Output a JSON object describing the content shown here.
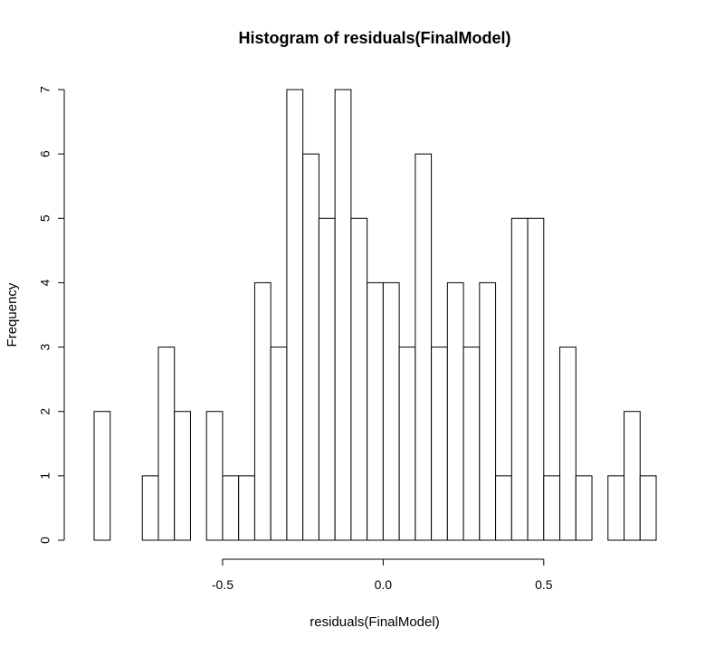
{
  "chart_data": {
    "type": "bar",
    "title": "Histogram of residuals(FinalModel)",
    "xlabel": "residuals(FinalModel)",
    "ylabel": "Frequency",
    "bin_width": 0.05,
    "bin_start": -0.9,
    "bins": [
      {
        "x0": -0.9,
        "x1": -0.85,
        "count": 2
      },
      {
        "x0": -0.85,
        "x1": -0.8,
        "count": 0
      },
      {
        "x0": -0.8,
        "x1": -0.75,
        "count": 0
      },
      {
        "x0": -0.75,
        "x1": -0.7,
        "count": 1
      },
      {
        "x0": -0.7,
        "x1": -0.65,
        "count": 3
      },
      {
        "x0": -0.65,
        "x1": -0.6,
        "count": 2
      },
      {
        "x0": -0.6,
        "x1": -0.55,
        "count": 0
      },
      {
        "x0": -0.55,
        "x1": -0.5,
        "count": 2
      },
      {
        "x0": -0.5,
        "x1": -0.45,
        "count": 1
      },
      {
        "x0": -0.45,
        "x1": -0.4,
        "count": 1
      },
      {
        "x0": -0.4,
        "x1": -0.35,
        "count": 4
      },
      {
        "x0": -0.35,
        "x1": -0.3,
        "count": 3
      },
      {
        "x0": -0.3,
        "x1": -0.25,
        "count": 7
      },
      {
        "x0": -0.25,
        "x1": -0.2,
        "count": 6
      },
      {
        "x0": -0.2,
        "x1": -0.15,
        "count": 5
      },
      {
        "x0": -0.15,
        "x1": -0.1,
        "count": 7
      },
      {
        "x0": -0.1,
        "x1": -0.05,
        "count": 5
      },
      {
        "x0": -0.05,
        "x1": 0.0,
        "count": 4
      },
      {
        "x0": 0.0,
        "x1": 0.05,
        "count": 4
      },
      {
        "x0": 0.05,
        "x1": 0.1,
        "count": 3
      },
      {
        "x0": 0.1,
        "x1": 0.15,
        "count": 6
      },
      {
        "x0": 0.15,
        "x1": 0.2,
        "count": 3
      },
      {
        "x0": 0.2,
        "x1": 0.25,
        "count": 4
      },
      {
        "x0": 0.25,
        "x1": 0.3,
        "count": 3
      },
      {
        "x0": 0.3,
        "x1": 0.35,
        "count": 4
      },
      {
        "x0": 0.35,
        "x1": 0.4,
        "count": 1
      },
      {
        "x0": 0.4,
        "x1": 0.45,
        "count": 5
      },
      {
        "x0": 0.45,
        "x1": 0.5,
        "count": 5
      },
      {
        "x0": 0.5,
        "x1": 0.55,
        "count": 1
      },
      {
        "x0": 0.55,
        "x1": 0.6,
        "count": 3
      },
      {
        "x0": 0.6,
        "x1": 0.65,
        "count": 1
      },
      {
        "x0": 0.65,
        "x1": 0.7,
        "count": 0
      },
      {
        "x0": 0.7,
        "x1": 0.75,
        "count": 1
      },
      {
        "x0": 0.75,
        "x1": 0.8,
        "count": 2
      },
      {
        "x0": 0.8,
        "x1": 0.85,
        "count": 1
      }
    ],
    "xlim": [
      -0.9,
      0.85
    ],
    "ylim": [
      0,
      7
    ],
    "x_axis_range": [
      -0.5,
      0.5
    ],
    "x_ticks": [
      -0.5,
      0.0,
      0.5
    ],
    "x_tick_labels": [
      "-0.5",
      "0.0",
      "0.5"
    ],
    "y_ticks": [
      0,
      1,
      2,
      3,
      4,
      5,
      6,
      7
    ],
    "y_tick_labels": [
      "0",
      "1",
      "2",
      "3",
      "4",
      "5",
      "6",
      "7"
    ],
    "grid": false,
    "legend": "none"
  }
}
